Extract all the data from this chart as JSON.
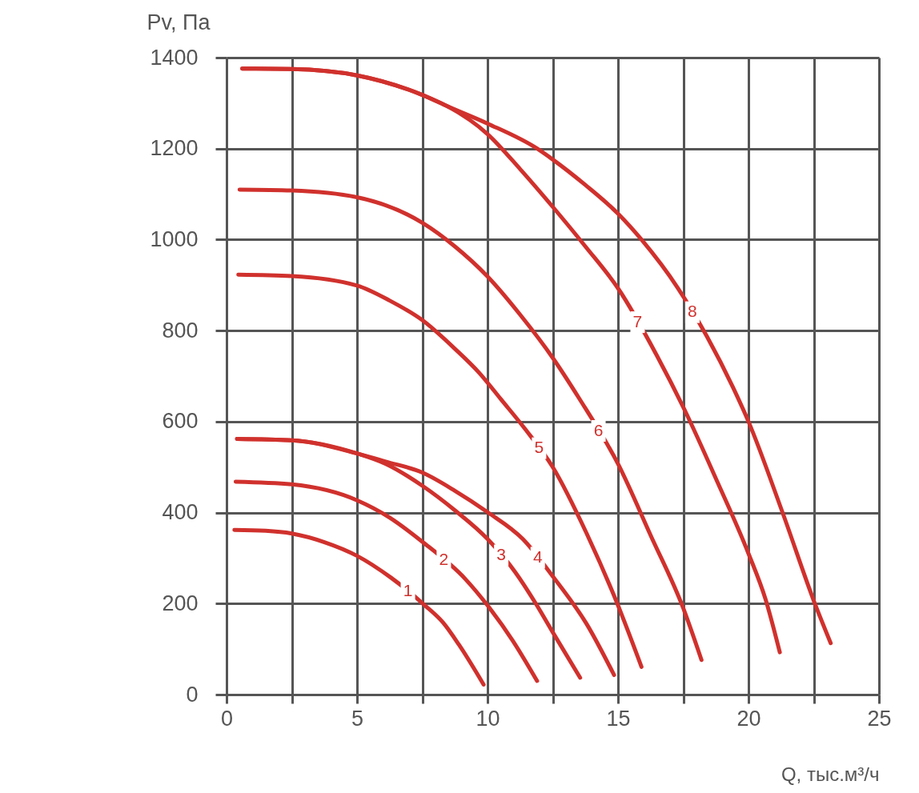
{
  "chart_data": {
    "type": "line",
    "xlabel": "Q, тыс.м³/ч",
    "ylabel": "Pv, Па",
    "xlim": [
      0,
      25
    ],
    "ylim": [
      0,
      1400
    ],
    "xticks": [
      0,
      {
        "value": 2.5,
        "label": null
      },
      5,
      {
        "value": 7.5,
        "label": null
      },
      10,
      {
        "value": 12.5,
        "label": null
      },
      15,
      {
        "value": 17.5,
        "label": null
      },
      20,
      {
        "value": 22.5,
        "label": null
      },
      25
    ],
    "yticks": [
      0,
      200,
      400,
      600,
      800,
      1000,
      1200,
      1400
    ],
    "grid": true,
    "series": [
      {
        "name": "1",
        "color": "#d0312d",
        "x": [
          0.3,
          1.5,
          2.5,
          3.75,
          5,
          6.3,
          7.6,
          8.3,
          8.9,
          9.85
        ],
        "values": [
          362,
          360,
          354,
          335,
          305,
          257,
          196,
          158,
          110,
          22
        ]
      },
      {
        "name": "2",
        "color": "#d0312d",
        "x": [
          0.35,
          2.5,
          5,
          6.25,
          7.5,
          9.15,
          10,
          10.95,
          11.9
        ],
        "values": [
          468,
          462,
          427,
          389,
          336,
          254,
          196,
          120,
          30
        ]
      },
      {
        "name": "3",
        "color": "#d0312d",
        "x": [
          0.4,
          2.5,
          5,
          6.1,
          7.5,
          8.75,
          10,
          11.05,
          11.85,
          12.5,
          13.55
        ],
        "values": [
          562,
          559,
          530,
          507,
          459,
          405,
          342,
          270,
          200,
          137,
          37
        ]
      },
      {
        "name": "4",
        "color": "#d0312d",
        "x": [
          0.4,
          2.5,
          5,
          6.1,
          7.5,
          8.75,
          10,
          11.35,
          12.5,
          13.8,
          14.85
        ],
        "values": [
          562,
          559,
          530,
          512,
          488,
          448,
          401,
          342,
          260,
          155,
          43
        ]
      },
      {
        "name": "5",
        "color": "#d0312d",
        "x": [
          0.45,
          2.5,
          5,
          6.25,
          7.5,
          8.75,
          9.7,
          10.5,
          11.45,
          12.5,
          13.8,
          15,
          15.9
        ],
        "values": [
          923,
          920,
          899,
          866,
          823,
          760,
          706,
          650,
          583,
          500,
          354,
          196,
          61
        ]
      },
      {
        "name": "6",
        "color": "#d0312d",
        "x": [
          0.5,
          2.5,
          5,
          7.5,
          8.75,
          10,
          11.25,
          12.5,
          13.5,
          15,
          16.25,
          17.5,
          18.2
        ],
        "values": [
          1110,
          1108,
          1093,
          1037,
          985,
          919,
          835,
          740,
          652,
          507,
          350,
          190,
          76
        ]
      },
      {
        "name": "7",
        "color": "#d0312d",
        "x": [
          0.6,
          2.5,
          5,
          7.5,
          8.5,
          10,
          11.25,
          12.5,
          13.75,
          15,
          16.5,
          17.6,
          18.75,
          20,
          20.65,
          21.2
        ],
        "values": [
          1376,
          1375,
          1361,
          1318,
          1292,
          1232,
          1155,
          1072,
          985,
          893,
          744,
          620,
          475,
          310,
          210,
          93
        ]
      },
      {
        "name": "8",
        "color": "#d0312d",
        "x": [
          0.6,
          2.5,
          5,
          7.5,
          8.5,
          10,
          11.9,
          12.5,
          13.75,
          15,
          15.9,
          17.3,
          18.4,
          19.4,
          20,
          21.3,
          22.55,
          23.15
        ],
        "values": [
          1376,
          1375,
          1361,
          1318,
          1292,
          1255,
          1200,
          1176,
          1120,
          1057,
          1000,
          893,
          788,
          676,
          600,
          401,
          199,
          113
        ]
      }
    ]
  }
}
